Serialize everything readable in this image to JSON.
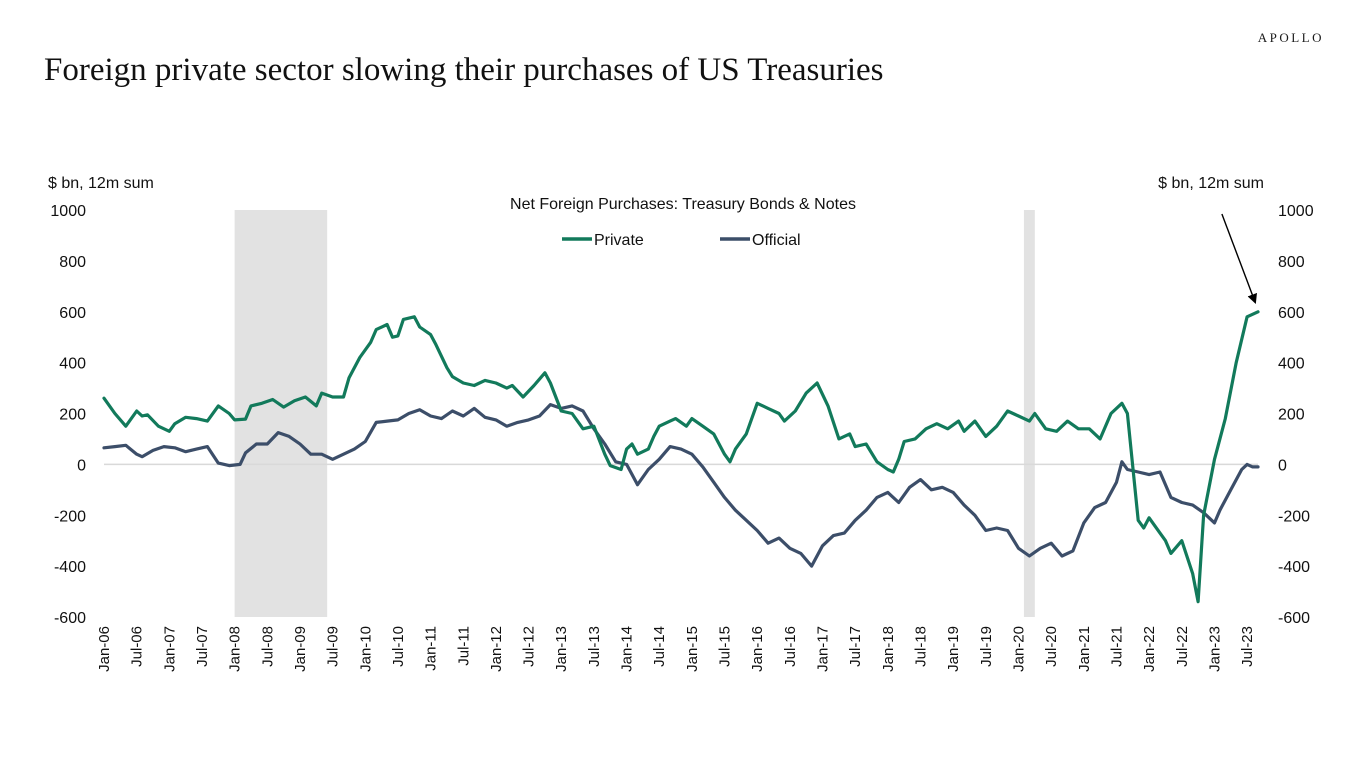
{
  "brand": "APOLLO",
  "title": "Foreign private sector slowing their purchases of US Treasuries",
  "colors": {
    "private": "#127a5b",
    "official": "#3c4e69",
    "recession": "#e2e2e2",
    "zero_line": "#d9d9d9",
    "arrow": "#000000"
  },
  "chart_data": {
    "type": "line",
    "title": "Net Foreign Purchases: Treasury Bonds & Notes",
    "ylabel_left": "$ bn, 12m sum",
    "ylabel_right": "$ bn, 12m sum",
    "ylim": [
      -600,
      1000
    ],
    "yticks": [
      1000,
      800,
      600,
      400,
      200,
      0,
      -200,
      -400,
      -600
    ],
    "x_range": [
      "2006-01",
      "2023-09"
    ],
    "xtick_labels": [
      "Jan-06",
      "Jul-06",
      "Jan-07",
      "Jul-07",
      "Jan-08",
      "Jul-08",
      "Jan-09",
      "Jul-09",
      "Jan-10",
      "Jul-10",
      "Jan-11",
      "Jul-11",
      "Jan-12",
      "Jul-12",
      "Jan-13",
      "Jul-13",
      "Jan-14",
      "Jul-14",
      "Jan-15",
      "Jul-15",
      "Jan-16",
      "Jul-16",
      "Jan-17",
      "Jul-17",
      "Jan-18",
      "Jul-18",
      "Jan-19",
      "Jul-19",
      "Jan-20",
      "Jul-20",
      "Jan-21",
      "Jul-21",
      "Jan-22",
      "Jul-22",
      "Jan-23",
      "Jul-23"
    ],
    "legend": "top-center",
    "grid": false,
    "shaded_periods": [
      {
        "start": "2008-01",
        "end": "2009-06"
      },
      {
        "start": "2020-02",
        "end": "2020-04"
      }
    ],
    "annotation": {
      "type": "arrow",
      "from": {
        "x": "2023-02",
        "y": 1000
      },
      "to": {
        "x": "2023-07",
        "y": 630
      }
    },
    "series": [
      {
        "name": "Private",
        "color": "#127a5b",
        "points": [
          [
            "2006-01",
            260
          ],
          [
            "2006-03",
            200
          ],
          [
            "2006-05",
            150
          ],
          [
            "2006-07",
            210
          ],
          [
            "2006-08",
            190
          ],
          [
            "2006-09",
            195
          ],
          [
            "2006-11",
            150
          ],
          [
            "2007-01",
            130
          ],
          [
            "2007-02",
            160
          ],
          [
            "2007-04",
            185
          ],
          [
            "2007-06",
            180
          ],
          [
            "2007-08",
            170
          ],
          [
            "2007-10",
            230
          ],
          [
            "2007-12",
            200
          ],
          [
            "2008-01",
            175
          ],
          [
            "2008-03",
            178
          ],
          [
            "2008-04",
            230
          ],
          [
            "2008-06",
            240
          ],
          [
            "2008-08",
            255
          ],
          [
            "2008-10",
            225
          ],
          [
            "2008-12",
            250
          ],
          [
            "2009-02",
            265
          ],
          [
            "2009-04",
            230
          ],
          [
            "2009-05",
            280
          ],
          [
            "2009-07",
            265
          ],
          [
            "2009-09",
            265
          ],
          [
            "2009-10",
            340
          ],
          [
            "2009-12",
            420
          ],
          [
            "2010-02",
            480
          ],
          [
            "2010-03",
            530
          ],
          [
            "2010-05",
            550
          ],
          [
            "2010-06",
            500
          ],
          [
            "2010-07",
            505
          ],
          [
            "2010-08",
            570
          ],
          [
            "2010-10",
            580
          ],
          [
            "2010-11",
            540
          ],
          [
            "2011-01",
            510
          ],
          [
            "2011-02",
            470
          ],
          [
            "2011-04",
            380
          ],
          [
            "2011-05",
            345
          ],
          [
            "2011-07",
            320
          ],
          [
            "2011-09",
            310
          ],
          [
            "2011-11",
            330
          ],
          [
            "2012-01",
            320
          ],
          [
            "2012-03",
            300
          ],
          [
            "2012-04",
            310
          ],
          [
            "2012-06",
            265
          ],
          [
            "2012-08",
            310
          ],
          [
            "2012-10",
            360
          ],
          [
            "2012-11",
            320
          ],
          [
            "2013-01",
            210
          ],
          [
            "2013-03",
            200
          ],
          [
            "2013-05",
            140
          ],
          [
            "2013-07",
            150
          ],
          [
            "2013-09",
            40
          ],
          [
            "2013-10",
            -5
          ],
          [
            "2013-12",
            -20
          ],
          [
            "2014-01",
            60
          ],
          [
            "2014-02",
            80
          ],
          [
            "2014-03",
            40
          ],
          [
            "2014-05",
            60
          ],
          [
            "2014-06",
            110
          ],
          [
            "2014-07",
            150
          ],
          [
            "2014-09",
            170
          ],
          [
            "2014-10",
            180
          ],
          [
            "2014-12",
            150
          ],
          [
            "2015-01",
            180
          ],
          [
            "2015-03",
            150
          ],
          [
            "2015-05",
            120
          ],
          [
            "2015-07",
            40
          ],
          [
            "2015-08",
            10
          ],
          [
            "2015-09",
            60
          ],
          [
            "2015-11",
            120
          ],
          [
            "2016-01",
            240
          ],
          [
            "2016-03",
            220
          ],
          [
            "2016-05",
            200
          ],
          [
            "2016-06",
            170
          ],
          [
            "2016-08",
            210
          ],
          [
            "2016-10",
            280
          ],
          [
            "2016-12",
            320
          ],
          [
            "2017-02",
            230
          ],
          [
            "2017-04",
            100
          ],
          [
            "2017-06",
            120
          ],
          [
            "2017-07",
            70
          ],
          [
            "2017-09",
            80
          ],
          [
            "2017-11",
            10
          ],
          [
            "2018-01",
            -20
          ],
          [
            "2018-02",
            -30
          ],
          [
            "2018-03",
            20
          ],
          [
            "2018-04",
            90
          ],
          [
            "2018-06",
            100
          ],
          [
            "2018-08",
            140
          ],
          [
            "2018-10",
            160
          ],
          [
            "2018-12",
            140
          ],
          [
            "2019-02",
            170
          ],
          [
            "2019-03",
            130
          ],
          [
            "2019-05",
            170
          ],
          [
            "2019-07",
            110
          ],
          [
            "2019-09",
            150
          ],
          [
            "2019-11",
            210
          ],
          [
            "2020-01",
            190
          ],
          [
            "2020-03",
            170
          ],
          [
            "2020-04",
            200
          ],
          [
            "2020-06",
            140
          ],
          [
            "2020-08",
            130
          ],
          [
            "2020-10",
            170
          ],
          [
            "2020-12",
            140
          ],
          [
            "2021-02",
            140
          ],
          [
            "2021-04",
            100
          ],
          [
            "2021-06",
            200
          ],
          [
            "2021-08",
            240
          ],
          [
            "2021-09",
            200
          ],
          [
            "2021-10",
            -10
          ],
          [
            "2021-11",
            -220
          ],
          [
            "2021-12",
            -250
          ],
          [
            "2022-01",
            -210
          ],
          [
            "2022-03",
            -270
          ],
          [
            "2022-04",
            -300
          ],
          [
            "2022-05",
            -350
          ],
          [
            "2022-07",
            -300
          ],
          [
            "2022-09",
            -430
          ],
          [
            "2022-10",
            -540
          ],
          [
            "2022-11",
            -200
          ],
          [
            "2023-01",
            20
          ],
          [
            "2023-03",
            180
          ],
          [
            "2023-05",
            400
          ],
          [
            "2023-07",
            580
          ],
          [
            "2023-09",
            600
          ]
        ]
      },
      {
        "name": "Official",
        "color": "#3c4e69",
        "points": [
          [
            "2006-01",
            65
          ],
          [
            "2006-03",
            70
          ],
          [
            "2006-05",
            75
          ],
          [
            "2006-07",
            40
          ],
          [
            "2006-08",
            30
          ],
          [
            "2006-10",
            55
          ],
          [
            "2006-12",
            70
          ],
          [
            "2007-02",
            65
          ],
          [
            "2007-04",
            50
          ],
          [
            "2007-06",
            60
          ],
          [
            "2007-08",
            70
          ],
          [
            "2007-10",
            5
          ],
          [
            "2007-12",
            -5
          ],
          [
            "2008-02",
            0
          ],
          [
            "2008-03",
            45
          ],
          [
            "2008-05",
            80
          ],
          [
            "2008-07",
            80
          ],
          [
            "2008-09",
            125
          ],
          [
            "2008-11",
            110
          ],
          [
            "2009-01",
            80
          ],
          [
            "2009-03",
            40
          ],
          [
            "2009-05",
            40
          ],
          [
            "2009-07",
            20
          ],
          [
            "2009-09",
            40
          ],
          [
            "2009-11",
            60
          ],
          [
            "2010-01",
            90
          ],
          [
            "2010-03",
            165
          ],
          [
            "2010-05",
            170
          ],
          [
            "2010-07",
            175
          ],
          [
            "2010-09",
            200
          ],
          [
            "2010-11",
            215
          ],
          [
            "2011-01",
            190
          ],
          [
            "2011-03",
            180
          ],
          [
            "2011-05",
            210
          ],
          [
            "2011-07",
            190
          ],
          [
            "2011-09",
            220
          ],
          [
            "2011-11",
            185
          ],
          [
            "2012-01",
            175
          ],
          [
            "2012-03",
            150
          ],
          [
            "2012-05",
            165
          ],
          [
            "2012-07",
            175
          ],
          [
            "2012-09",
            190
          ],
          [
            "2012-11",
            235
          ],
          [
            "2013-01",
            220
          ],
          [
            "2013-03",
            230
          ],
          [
            "2013-05",
            210
          ],
          [
            "2013-07",
            140
          ],
          [
            "2013-09",
            80
          ],
          [
            "2013-11",
            10
          ],
          [
            "2014-01",
            0
          ],
          [
            "2014-03",
            -80
          ],
          [
            "2014-05",
            -20
          ],
          [
            "2014-07",
            20
          ],
          [
            "2014-09",
            70
          ],
          [
            "2014-11",
            60
          ],
          [
            "2015-01",
            40
          ],
          [
            "2015-03",
            -10
          ],
          [
            "2015-05",
            -70
          ],
          [
            "2015-07",
            -130
          ],
          [
            "2015-09",
            -180
          ],
          [
            "2015-11",
            -220
          ],
          [
            "2016-01",
            -260
          ],
          [
            "2016-03",
            -310
          ],
          [
            "2016-05",
            -290
          ],
          [
            "2016-07",
            -330
          ],
          [
            "2016-09",
            -350
          ],
          [
            "2016-11",
            -400
          ],
          [
            "2017-01",
            -320
          ],
          [
            "2017-03",
            -280
          ],
          [
            "2017-05",
            -270
          ],
          [
            "2017-07",
            -220
          ],
          [
            "2017-09",
            -180
          ],
          [
            "2017-11",
            -130
          ],
          [
            "2018-01",
            -110
          ],
          [
            "2018-03",
            -150
          ],
          [
            "2018-05",
            -90
          ],
          [
            "2018-07",
            -60
          ],
          [
            "2018-09",
            -100
          ],
          [
            "2018-11",
            -90
          ],
          [
            "2019-01",
            -110
          ],
          [
            "2019-03",
            -160
          ],
          [
            "2019-05",
            -200
          ],
          [
            "2019-07",
            -260
          ],
          [
            "2019-09",
            -250
          ],
          [
            "2019-11",
            -260
          ],
          [
            "2020-01",
            -330
          ],
          [
            "2020-03",
            -360
          ],
          [
            "2020-05",
            -330
          ],
          [
            "2020-07",
            -310
          ],
          [
            "2020-09",
            -360
          ],
          [
            "2020-11",
            -340
          ],
          [
            "2021-01",
            -230
          ],
          [
            "2021-03",
            -170
          ],
          [
            "2021-05",
            -150
          ],
          [
            "2021-07",
            -70
          ],
          [
            "2021-08",
            10
          ],
          [
            "2021-09",
            -20
          ],
          [
            "2021-11",
            -30
          ],
          [
            "2022-01",
            -40
          ],
          [
            "2022-03",
            -30
          ],
          [
            "2022-05",
            -130
          ],
          [
            "2022-07",
            -150
          ],
          [
            "2022-09",
            -160
          ],
          [
            "2022-11",
            -190
          ],
          [
            "2023-01",
            -230
          ],
          [
            "2023-02",
            -180
          ],
          [
            "2023-04",
            -100
          ],
          [
            "2023-06",
            -20
          ],
          [
            "2023-07",
            0
          ],
          [
            "2023-08",
            -10
          ],
          [
            "2023-09",
            -10
          ]
        ]
      }
    ]
  }
}
